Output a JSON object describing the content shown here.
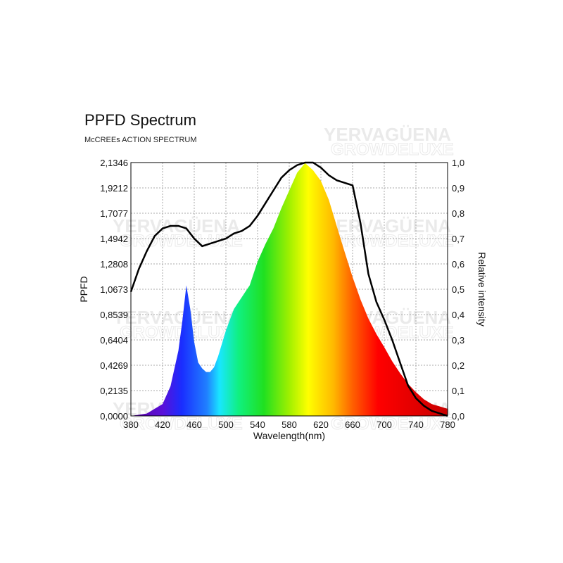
{
  "chart_data": {
    "type": "area",
    "title": "PPFD Spectrum",
    "subtitle": "McCREEs ACTION SPECTRUM",
    "xlabel": "Wavelength(nm)",
    "ylabel": "PPFD",
    "y2label": "Relative intensity",
    "xlim": [
      380,
      780
    ],
    "ylim": [
      0,
      2.1346
    ],
    "y2lim": [
      0,
      1.0
    ],
    "x_ticks": [
      380,
      420,
      460,
      500,
      540,
      580,
      620,
      660,
      700,
      740,
      780
    ],
    "y_ticks": [
      "0,0000",
      "0,2135",
      "0,4269",
      "0,6404",
      "0,8539",
      "1,0673",
      "1,2808",
      "1,4942",
      "1,7077",
      "1,9212",
      "2,1346"
    ],
    "y2_ticks": [
      "0,0",
      "0,1",
      "0,2",
      "0,3",
      "0,4",
      "0,5",
      "0,6",
      "0,7",
      "0,8",
      "0,9",
      "1,0"
    ],
    "grid": true,
    "series": [
      {
        "axis": "left",
        "x": [
          380,
          400,
          420,
          430,
          440,
          445,
          450,
          455,
          460,
          465,
          470,
          475,
          480,
          485,
          490,
          500,
          510,
          520,
          525,
          530,
          540,
          550,
          560,
          570,
          580,
          590,
          600,
          605,
          610,
          620,
          630,
          640,
          650,
          660,
          670,
          680,
          690,
          700,
          710,
          720,
          730,
          740,
          750,
          760,
          770,
          780
        ],
        "values": [
          0.0,
          0.02,
          0.1,
          0.25,
          0.55,
          0.8,
          1.1,
          0.9,
          0.62,
          0.45,
          0.4,
          0.37,
          0.37,
          0.41,
          0.5,
          0.72,
          0.9,
          1.0,
          1.05,
          1.1,
          1.3,
          1.45,
          1.58,
          1.75,
          1.9,
          2.05,
          2.13,
          2.1,
          2.07,
          1.98,
          1.82,
          1.6,
          1.38,
          1.17,
          0.98,
          0.82,
          0.69,
          0.58,
          0.46,
          0.36,
          0.27,
          0.2,
          0.14,
          0.1,
          0.08,
          0.06
        ]
      },
      {
        "axis": "right",
        "x": [
          380,
          390,
          400,
          410,
          420,
          430,
          440,
          450,
          460,
          470,
          480,
          490,
          500,
          510,
          520,
          530,
          540,
          550,
          560,
          570,
          580,
          590,
          600,
          610,
          620,
          630,
          640,
          650,
          660,
          670,
          680,
          690,
          700,
          710,
          720,
          730,
          740,
          750,
          760,
          770,
          780
        ],
        "values": [
          0.49,
          0.58,
          0.65,
          0.71,
          0.74,
          0.75,
          0.75,
          0.74,
          0.7,
          0.67,
          0.68,
          0.69,
          0.7,
          0.72,
          0.73,
          0.75,
          0.79,
          0.84,
          0.89,
          0.94,
          0.97,
          0.99,
          1.0,
          1.0,
          0.98,
          0.95,
          0.93,
          0.92,
          0.91,
          0.76,
          0.56,
          0.45,
          0.38,
          0.3,
          0.21,
          0.12,
          0.07,
          0.04,
          0.02,
          0.01,
          0.0
        ]
      }
    ]
  }
}
